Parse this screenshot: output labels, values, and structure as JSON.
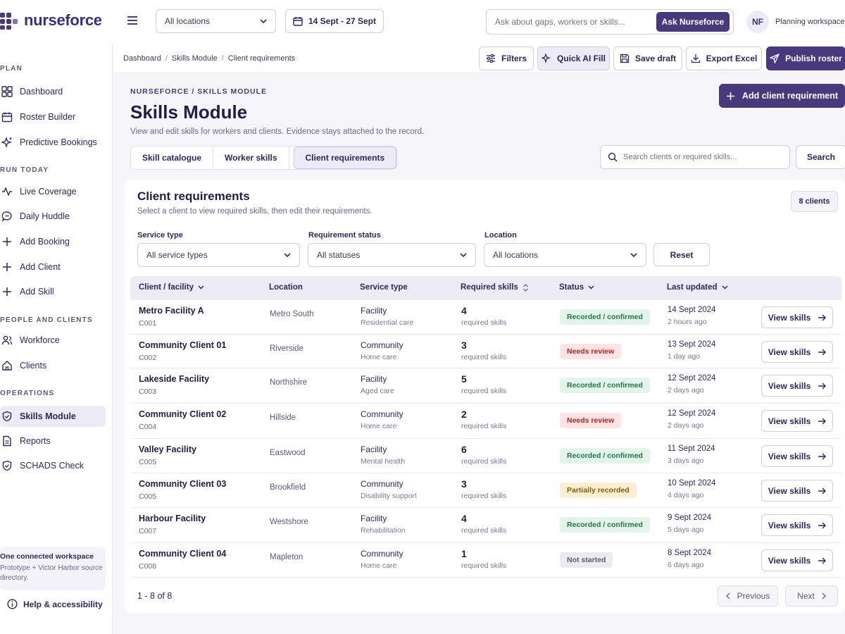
{
  "brand": {
    "name": "nurseforce",
    "accent": "#46397e"
  },
  "topbar": {
    "location_select": "All locations",
    "date_range": "14 Sept - 27 Sept",
    "ask_placeholder": "Ask about gaps, workers or skills...",
    "ask_button": "Ask Nurseforce",
    "avatar_initials": "NF",
    "workspace": "Planning workspace"
  },
  "sidebar": {
    "sections": {
      "plan": "PLAN",
      "run_today": "RUN TODAY",
      "people": "PEOPLE AND CLIENTS",
      "operations": "OPERATIONS"
    },
    "items": [
      {
        "label": "Dashboard",
        "icon": "grid-icon"
      },
      {
        "label": "Roster Builder",
        "icon": "calendar-icon"
      },
      {
        "label": "Predictive Bookings",
        "icon": "sparkle-icon"
      },
      {
        "label": "Live Coverage",
        "icon": "pulse-icon"
      },
      {
        "label": "Daily Huddle",
        "icon": "chat-icon"
      },
      {
        "label": "Add Booking",
        "icon": "plus-icon"
      },
      {
        "label": "Add Client",
        "icon": "plus-icon"
      },
      {
        "label": "Add Skill",
        "icon": "plus-icon"
      },
      {
        "label": "Workforce",
        "icon": "users-icon"
      },
      {
        "label": "Clients",
        "icon": "home-icon"
      },
      {
        "label": "Skills Module",
        "icon": "shield-icon",
        "active": true
      },
      {
        "label": "Reports",
        "icon": "document-icon"
      },
      {
        "label": "SCHADS Check",
        "icon": "shield-check-icon"
      }
    ],
    "workspace_card": {
      "title": "One connected workspace",
      "subtitle": "Prototype + Victor Harbor source directory."
    },
    "help": "Help & accessibility"
  },
  "breadcrumb": [
    "Dashboard",
    "Skills Module",
    "Client requirements"
  ],
  "actions": {
    "filters": "Filters",
    "quick_ai": "Quick AI Fill",
    "save": "Save draft",
    "export": "Export Excel",
    "publish": "Publish roster"
  },
  "header": {
    "eyebrow": "NURSEFORCE / SKILLS MODULE",
    "title": "Skills Module",
    "subtitle": "View and edit skills for workers and clients. Evidence stays attached to the record.",
    "add_button": "Add client requirement"
  },
  "tabs": [
    "Skill catalogue",
    "Worker skills",
    "Client requirements"
  ],
  "search": {
    "placeholder": "Search clients or required skills...",
    "button": "Search"
  },
  "panel": {
    "title": "Client requirements",
    "subtitle": "Select a client to view required skills, then edit their requirements.",
    "count": "8 clients",
    "filters": {
      "service_type_label": "Service type",
      "service_type_value": "All service types",
      "status_label": "Requirement status",
      "status_value": "All statuses",
      "location_label": "Location",
      "location_value": "All locations",
      "reset": "Reset"
    },
    "columns": {
      "client": "Client / facility",
      "location": "Location",
      "service": "Service type",
      "skills": "Required skills",
      "status": "Status",
      "updated": "Last updated"
    },
    "status_colors": {
      "Recorded / confirmed": {
        "bg": "#e3f5ea",
        "fg": "#1f7a44"
      },
      "Needs review": {
        "bg": "#fde3e3",
        "fg": "#b3261e"
      },
      "Partially recorded": {
        "bg": "#fdf0d2",
        "fg": "#8a5a00"
      },
      "Not started": {
        "bg": "#ebebf2",
        "fg": "#5b5880"
      }
    },
    "rows": [
      {
        "name": "Metro Facility A",
        "code": "C001",
        "location": "Metro South",
        "type": "Facility",
        "type_sub": "Residential care",
        "skills": "4",
        "skills_sub": "required skills",
        "status": "Recorded / confirmed",
        "date": "14 Sept 2024",
        "ago": "2 hours ago",
        "action": "View skills"
      },
      {
        "name": "Community Client 01",
        "code": "C002",
        "location": "Riverside",
        "type": "Community",
        "type_sub": "Home care",
        "skills": "3",
        "skills_sub": "required skills",
        "status": "Needs review",
        "date": "13 Sept 2024",
        "ago": "1 day ago",
        "action": "View skills"
      },
      {
        "name": "Lakeside Facility",
        "code": "C003",
        "location": "Northshire",
        "type": "Facility",
        "type_sub": "Aged care",
        "skills": "5",
        "skills_sub": "required skills",
        "status": "Recorded / confirmed",
        "date": "12 Sept 2024",
        "ago": "2 days ago",
        "action": "View skills"
      },
      {
        "name": "Community Client 02",
        "code": "C004",
        "location": "Hillside",
        "type": "Community",
        "type_sub": "Home care",
        "skills": "2",
        "skills_sub": "required skills",
        "status": "Needs review",
        "date": "12 Sept 2024",
        "ago": "2 days ago",
        "action": "View skills"
      },
      {
        "name": "Valley Facility",
        "code": "C005",
        "location": "Eastwood",
        "type": "Facility",
        "type_sub": "Mental health",
        "skills": "6",
        "skills_sub": "required skills",
        "status": "Recorded / confirmed",
        "date": "11 Sept 2024",
        "ago": "3 days ago",
        "action": "View skills"
      },
      {
        "name": "Community Client 03",
        "code": "C005",
        "location": "Brookfield",
        "type": "Community",
        "type_sub": "Disability support",
        "skills": "3",
        "skills_sub": "required skills",
        "status": "Partially recorded",
        "date": "10 Sept 2024",
        "ago": "4 days ago",
        "action": "View skills"
      },
      {
        "name": "Harbour Facility",
        "code": "C007",
        "location": "Westshore",
        "type": "Facility",
        "type_sub": "Rehabilitation",
        "skills": "4",
        "skills_sub": "required skills",
        "status": "Recorded / confirmed",
        "date": "9 Sept 2024",
        "ago": "5 days ago",
        "action": "View skills"
      },
      {
        "name": "Community Client 04",
        "code": "C008",
        "location": "Mapleton",
        "type": "Community",
        "type_sub": "Home care",
        "skills": "1",
        "skills_sub": "required skills",
        "status": "Not started",
        "date": "8 Sept 2024",
        "ago": "6 days ago",
        "action": "View skills"
      }
    ],
    "pagination": {
      "summary": "1 - 8 of 8",
      "previous": "Previous",
      "next": "Next"
    }
  }
}
